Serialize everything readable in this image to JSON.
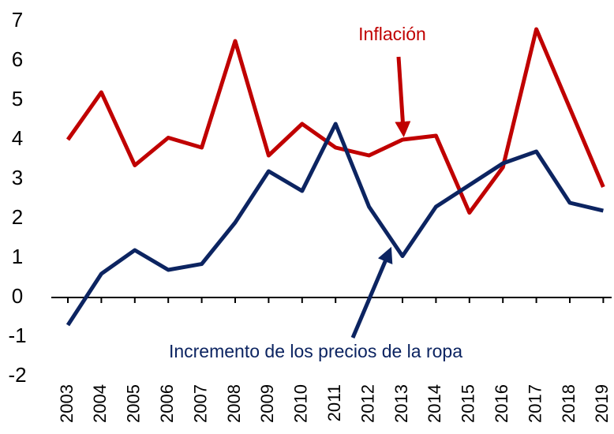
{
  "chart_data": {
    "type": "line",
    "categories": [
      "2003",
      "2004",
      "2005",
      "2006",
      "2007",
      "2008",
      "2009",
      "2010",
      "2011",
      "2012",
      "2013",
      "2014",
      "2015",
      "2016",
      "2017",
      "2018",
      "2019"
    ],
    "series": [
      {
        "name": "Inflación",
        "color": "#c00000",
        "values": [
          4.0,
          5.2,
          3.35,
          4.05,
          3.8,
          6.5,
          3.6,
          4.4,
          3.8,
          3.6,
          4.0,
          4.1,
          2.15,
          3.3,
          6.8,
          4.8,
          2.8
        ]
      },
      {
        "name": "Incremento de los precios de la ropa",
        "color": "#0c2461",
        "values": [
          -0.7,
          0.6,
          1.2,
          0.7,
          0.85,
          1.9,
          3.2,
          2.7,
          4.4,
          2.3,
          1.05,
          2.3,
          2.85,
          3.4,
          3.7,
          2.4,
          2.2
        ]
      }
    ],
    "ylim": [
      -2,
      7
    ],
    "yticks": [
      -2,
      -1,
      0,
      1,
      2,
      3,
      4,
      5,
      6,
      7
    ],
    "grid": false
  }
}
